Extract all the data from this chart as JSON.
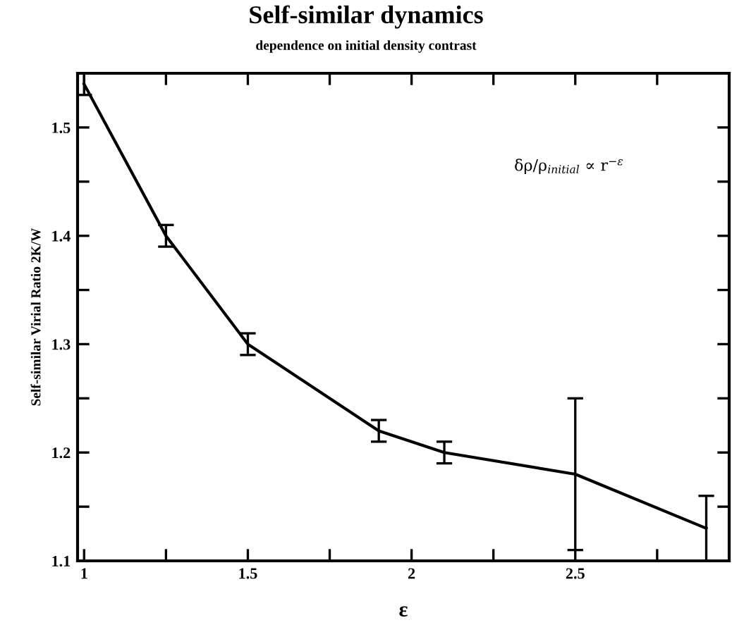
{
  "chart_data": {
    "type": "line",
    "title": "Self-similar dynamics",
    "subtitle": "dependence on initial density contrast",
    "xlabel": "ε",
    "ylabel": "Self-similar Virial Ratio 2K/W",
    "annotations": [
      "δρ/ρ$_{initial}$ ∝ r$^{−ε}$"
    ],
    "x": [
      1,
      1.25,
      1.5,
      1.9,
      2.1,
      2.5,
      2.9
    ],
    "series": [
      {
        "color": "#000000",
        "values": [
          1.54,
          1.4,
          1.3,
          1.22,
          1.2,
          1.18,
          1.13
        ],
        "errors": [
          0.01,
          0.01,
          0.01,
          0.01,
          0.01,
          [
            1.11,
            1.25
          ],
          [
            1.1,
            1.16
          ]
        ]
      }
    ],
    "xlim": [
      0.98,
      2.97
    ],
    "ylim": [
      1.1,
      1.55
    ],
    "xticks": [
      1,
      {
        "value": 1.25,
        "label": null
      },
      1.5,
      {
        "value": 1.75,
        "label": null
      },
      2,
      {
        "value": 2.25,
        "label": null
      },
      2.5,
      {
        "value": 2.75,
        "label": null
      }
    ],
    "yticks": [
      1.1,
      {
        "value": 1.15,
        "label": null
      },
      1.2,
      {
        "value": 1.25,
        "label": null
      },
      1.3,
      {
        "value": 1.35,
        "label": null
      },
      1.4,
      {
        "value": 1.45,
        "label": null
      },
      1.5
    ],
    "grid": false,
    "marker": "none",
    "line_style": "solid"
  }
}
